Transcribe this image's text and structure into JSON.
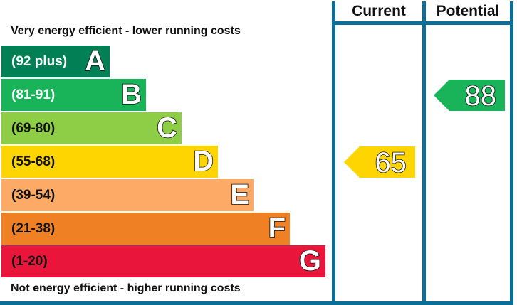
{
  "top_caption": "Very energy efficient - lower running costs",
  "bottom_caption": "Not energy efficient - higher running costs",
  "columns": {
    "current": "Current",
    "potential": "Potential"
  },
  "colors": {
    "rule": "#0b6e96"
  },
  "bands": [
    {
      "range": "(92 plus)",
      "letter": "A",
      "color": "#008054",
      "text_color": "#ffffff"
    },
    {
      "range": "(81-91)",
      "letter": "B",
      "color": "#19b459",
      "text_color": "#ffffff"
    },
    {
      "range": "(69-80)",
      "letter": "C",
      "color": "#8dce46",
      "text_color": "#111111"
    },
    {
      "range": "(55-68)",
      "letter": "D",
      "color": "#ffd500",
      "text_color": "#111111"
    },
    {
      "range": "(39-54)",
      "letter": "E",
      "color": "#fcaa65",
      "text_color": "#111111"
    },
    {
      "range": "(21-38)",
      "letter": "F",
      "color": "#ef8023",
      "text_color": "#111111"
    },
    {
      "range": "(1-20)",
      "letter": "G",
      "color": "#e9153b",
      "text_color": "#111111"
    }
  ],
  "ratings": {
    "current": {
      "value": "65",
      "band": "D",
      "color": "#ffd500"
    },
    "potential": {
      "value": "88",
      "band": "B",
      "color": "#19b459"
    }
  }
}
